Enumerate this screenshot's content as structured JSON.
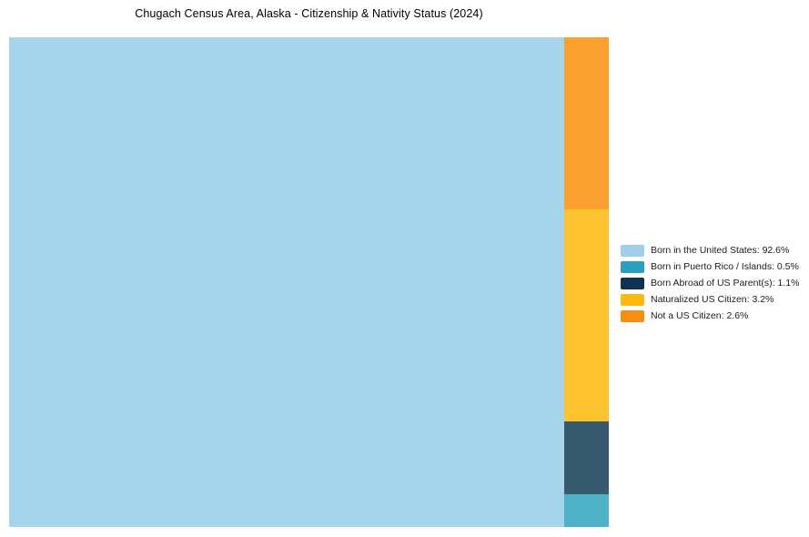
{
  "title": "Chugach Census Area, Alaska - Citizenship & Nativity Status (2024)",
  "chart_data": {
    "type": "treemap",
    "title": "Chugach Census Area, Alaska - Citizenship & Nativity Status (2024)",
    "unit": "percent",
    "total": 100,
    "legend_position": "right-center",
    "segments": [
      {
        "label": "Born in the United States",
        "value": 92.6,
        "legend_text": "Born in the United States: 92.6%",
        "color": "#A0CEE8",
        "block_color": "#A5D4EB"
      },
      {
        "label": "Born in Puerto Rico / Islands",
        "value": 0.5,
        "legend_text": "Born in Puerto Rico / Islands: 0.5%",
        "color": "#2D9FBE",
        "block_color": "#4EB2C6"
      },
      {
        "label": "Born Abroad of US Parent(s)",
        "value": 1.1,
        "legend_text": "Born Abroad of US Parent(s): 1.1%",
        "color": "#103252",
        "block_color": "#36596E"
      },
      {
        "label": "Naturalized US Citizen",
        "value": 3.2,
        "legend_text": "Naturalized US Citizen: 3.2%",
        "color": "#FDB812",
        "block_color": "#FDC32E"
      },
      {
        "label": "Not a US Citizen",
        "value": 2.6,
        "legend_text": "Not a US Citizen: 2.6%",
        "color": "#F78E14",
        "block_color": "#FAA02F"
      }
    ],
    "layout": {
      "main_segment": "Born in the United States",
      "side_column_order_top_to_bottom": [
        "Not a US Citizen",
        "Naturalized US Citizen",
        "Born Abroad of US Parent(s)",
        "Born in Puerto Rico / Islands"
      ]
    }
  }
}
